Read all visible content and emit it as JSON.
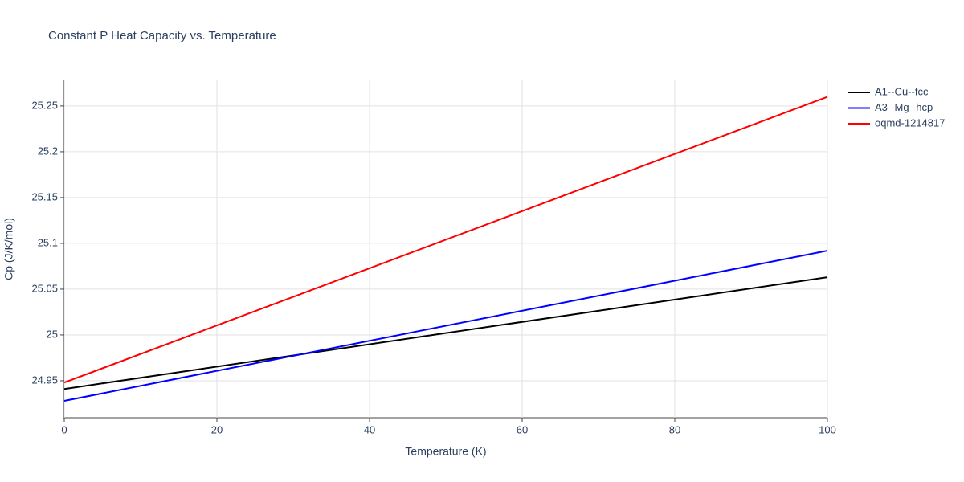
{
  "chart_data": {
    "type": "line",
    "title": "Constant P Heat Capacity vs. Temperature",
    "x_label": "Temperature (K)",
    "y_label": "Cp (J/K/mol)",
    "x": [
      0,
      100
    ],
    "series": [
      {
        "name": "A1--Cu--fcc",
        "color": "#000000",
        "values": [
          24.941,
          25.063
        ]
      },
      {
        "name": "A3--Mg--hcp",
        "color": "#0000ff",
        "values": [
          24.928,
          25.092
        ]
      },
      {
        "name": "oqmd-1214817",
        "color": "#ff0000",
        "values": [
          24.948,
          25.26
        ]
      }
    ],
    "xlim": [
      0,
      100
    ],
    "xticks": [
      0,
      20,
      40,
      60,
      80,
      100
    ],
    "ylim": [
      24.9096,
      25.278
    ],
    "yticks": [
      24.95,
      25,
      25.05,
      25.1,
      25.15,
      25.2,
      25.25
    ],
    "grid": true
  }
}
